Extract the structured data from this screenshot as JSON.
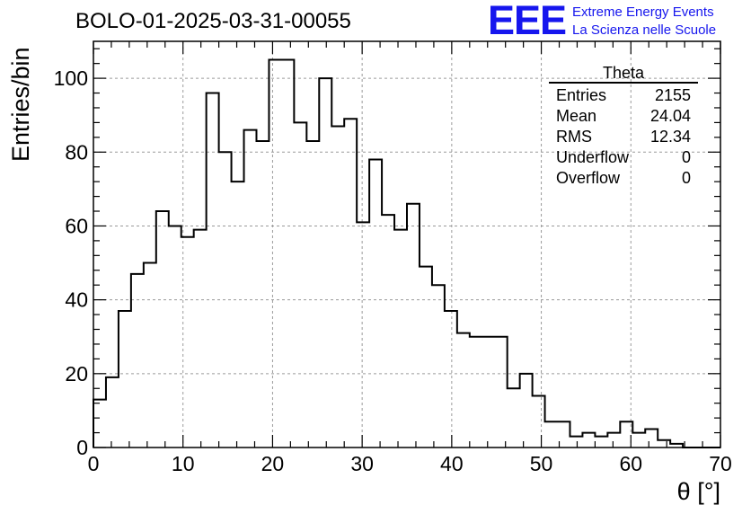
{
  "chart_data": {
    "type": "bar",
    "title": "BOLO-01-2025-03-31-00055",
    "xlabel": "θ [°]",
    "ylabel": "Entries/bin",
    "xlim": [
      0,
      70
    ],
    "ylim": [
      0,
      110
    ],
    "xticks": [
      "0",
      "10",
      "20",
      "30",
      "40",
      "50",
      "60",
      "70"
    ],
    "yticks": [
      "0",
      "20",
      "40",
      "60",
      "80",
      "100"
    ],
    "grid": true,
    "bin_width": 1.4,
    "bin_edges_start": 0,
    "values": [
      13,
      19,
      37,
      47,
      50,
      64,
      60,
      57,
      59,
      96,
      80,
      72,
      86,
      83,
      105,
      105,
      88,
      83,
      100,
      87,
      89,
      61,
      78,
      63,
      59,
      66,
      49,
      44,
      37,
      31,
      30,
      30,
      30,
      16,
      20,
      14,
      7,
      7,
      3,
      4,
      3,
      4,
      7,
      4,
      5,
      2,
      1,
      0,
      0,
      0
    ],
    "stats": {
      "title": "Theta",
      "rows": [
        {
          "label": "Entries",
          "value": "2155"
        },
        {
          "label": "Mean",
          "value": "24.04"
        },
        {
          "label": "RMS",
          "value": "12.34"
        },
        {
          "label": "Underflow",
          "value": "0"
        },
        {
          "label": "Overflow",
          "value": "0"
        }
      ]
    }
  },
  "logo": {
    "mark": "EEE",
    "line1": "Extreme Energy Events",
    "line2": "La Scienza nelle Scuole",
    "color": "#1616ee"
  }
}
